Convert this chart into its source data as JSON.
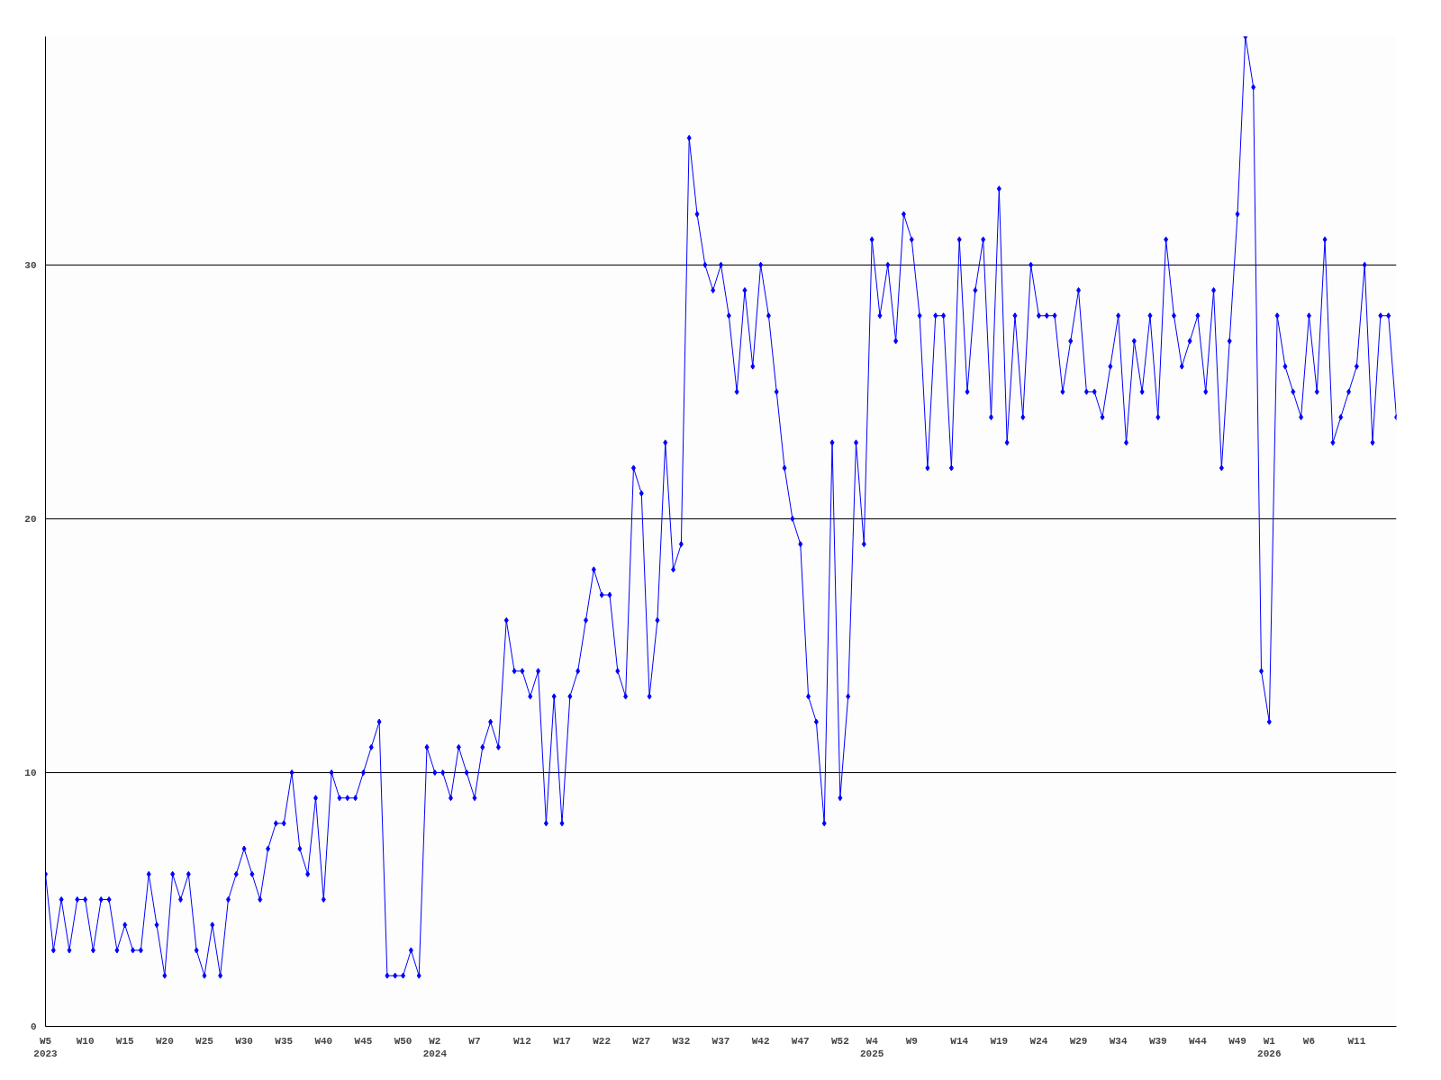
{
  "chart_data": {
    "type": "line",
    "marker": "diamond",
    "line_style": "solid",
    "grid": "y",
    "categories": [
      "W5\n2023",
      null,
      null,
      null,
      null,
      "W10",
      null,
      null,
      null,
      null,
      "W15",
      null,
      null,
      null,
      null,
      "W20",
      null,
      null,
      null,
      null,
      "W25",
      null,
      null,
      null,
      null,
      "W30",
      null,
      null,
      null,
      null,
      "W35",
      null,
      null,
      null,
      null,
      "W40",
      null,
      null,
      null,
      null,
      "W45",
      null,
      null,
      null,
      null,
      "W50",
      null,
      null,
      null,
      "W2\n2024",
      null,
      null,
      null,
      null,
      "W7",
      null,
      null,
      null,
      null,
      null,
      "W12",
      null,
      null,
      null,
      null,
      "W17",
      null,
      null,
      null,
      null,
      "W22",
      null,
      null,
      null,
      null,
      "W27",
      null,
      null,
      null,
      null,
      "W32",
      null,
      null,
      null,
      null,
      "W37",
      null,
      null,
      null,
      null,
      "W42",
      null,
      null,
      null,
      null,
      "W47",
      null,
      null,
      null,
      null,
      "W52",
      null,
      null,
      null,
      "W4\n2025",
      null,
      null,
      null,
      null,
      "W9",
      null,
      null,
      null,
      null,
      null,
      "W14",
      null,
      null,
      null,
      null,
      "W19",
      null,
      null,
      null,
      null,
      "W24",
      null,
      null,
      null,
      null,
      "W29",
      null,
      null,
      null,
      null,
      "W34",
      null,
      null,
      null,
      null,
      "W39",
      null,
      null,
      null,
      null,
      "W44",
      null,
      null,
      null,
      null,
      "W49",
      null,
      null,
      null,
      "W1\n2026",
      null,
      null,
      null,
      null,
      "W6",
      null,
      null,
      null,
      null,
      null,
      "W11",
      null,
      null,
      null,
      null,
      null
    ],
    "series": [
      {
        "color": "#0000ff",
        "values": [
          6,
          3,
          5,
          3,
          5,
          5,
          3,
          5,
          5,
          3,
          4,
          3,
          3,
          6,
          4,
          2,
          6,
          5,
          6,
          3,
          2,
          4,
          2,
          5,
          6,
          7,
          6,
          5,
          7,
          8,
          8,
          10,
          7,
          6,
          9,
          5,
          10,
          9,
          9,
          9,
          10,
          11,
          12,
          2,
          2,
          2,
          3,
          2,
          11,
          10,
          10,
          9,
          11,
          10,
          9,
          11,
          12,
          11,
          16,
          14,
          14,
          13,
          14,
          8,
          13,
          8,
          13,
          14,
          16,
          18,
          17,
          17,
          14,
          13,
          22,
          21,
          13,
          16,
          23,
          18,
          19,
          35,
          32,
          30,
          29,
          30,
          28,
          25,
          29,
          26,
          30,
          28,
          25,
          22,
          20,
          19,
          13,
          12,
          8,
          23,
          9,
          13,
          23,
          19,
          31,
          28,
          30,
          27,
          32,
          31,
          28,
          22,
          28,
          28,
          22,
          31,
          25,
          29,
          31,
          24,
          33,
          23,
          28,
          24,
          30,
          28,
          28,
          28,
          25,
          27,
          29,
          25,
          25,
          24,
          26,
          28,
          23,
          27,
          25,
          28,
          24,
          31,
          28,
          26,
          27,
          28,
          25,
          29,
          22,
          27,
          32,
          39,
          37,
          14,
          12,
          28,
          26,
          25,
          24,
          28,
          25,
          31,
          23,
          24,
          25,
          26,
          30,
          23,
          28,
          28,
          24
        ]
      }
    ],
    "ylim": [
      0,
      39
    ],
    "yticks": [
      0,
      10,
      20,
      30
    ]
  }
}
